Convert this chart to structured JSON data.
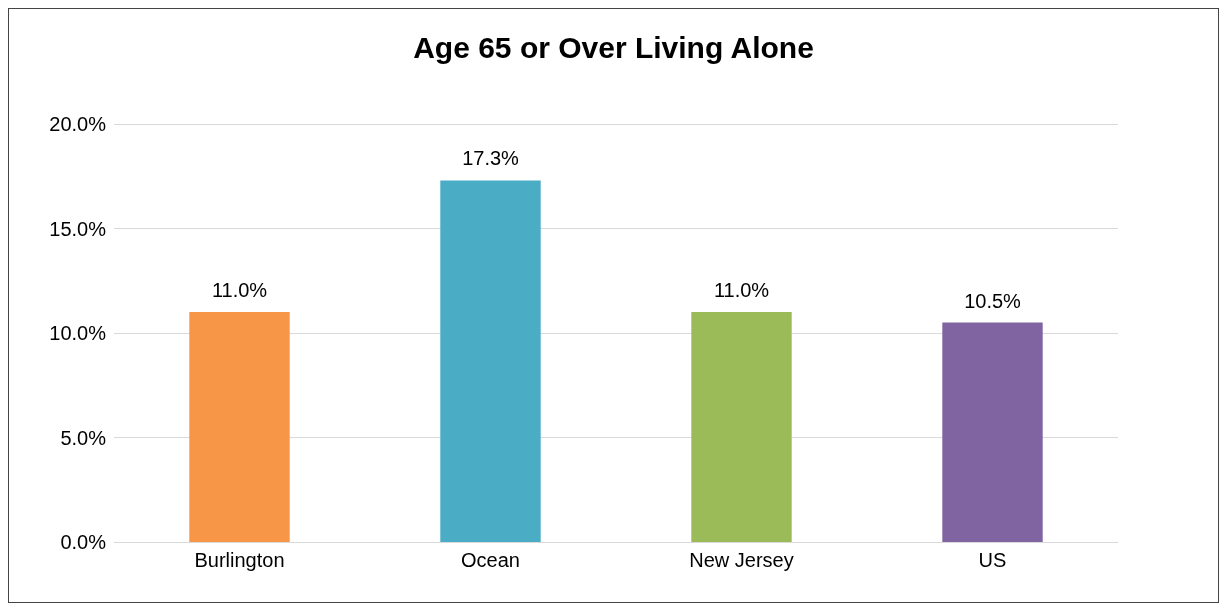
{
  "chart_data": {
    "type": "bar",
    "title": "Age 65 or Over Living Alone",
    "categories": [
      "Burlington",
      "Ocean",
      "New Jersey",
      "US"
    ],
    "values": [
      11.0,
      17.3,
      11.0,
      10.5
    ],
    "colors": [
      "#f79646",
      "#4bacc6",
      "#9bbb59",
      "#8064a2"
    ],
    "value_labels": [
      "11.0%",
      "17.3%",
      "11.0%",
      "10.5%"
    ],
    "ylim": [
      0,
      20
    ],
    "yticks": [
      {
        "value": 0,
        "label": "0.0%"
      },
      {
        "value": 5,
        "label": "5.0%"
      },
      {
        "value": 10,
        "label": "10.0%"
      },
      {
        "value": 15,
        "label": "15.0%"
      },
      {
        "value": 20,
        "label": "20.0%"
      }
    ],
    "grid": "y"
  }
}
